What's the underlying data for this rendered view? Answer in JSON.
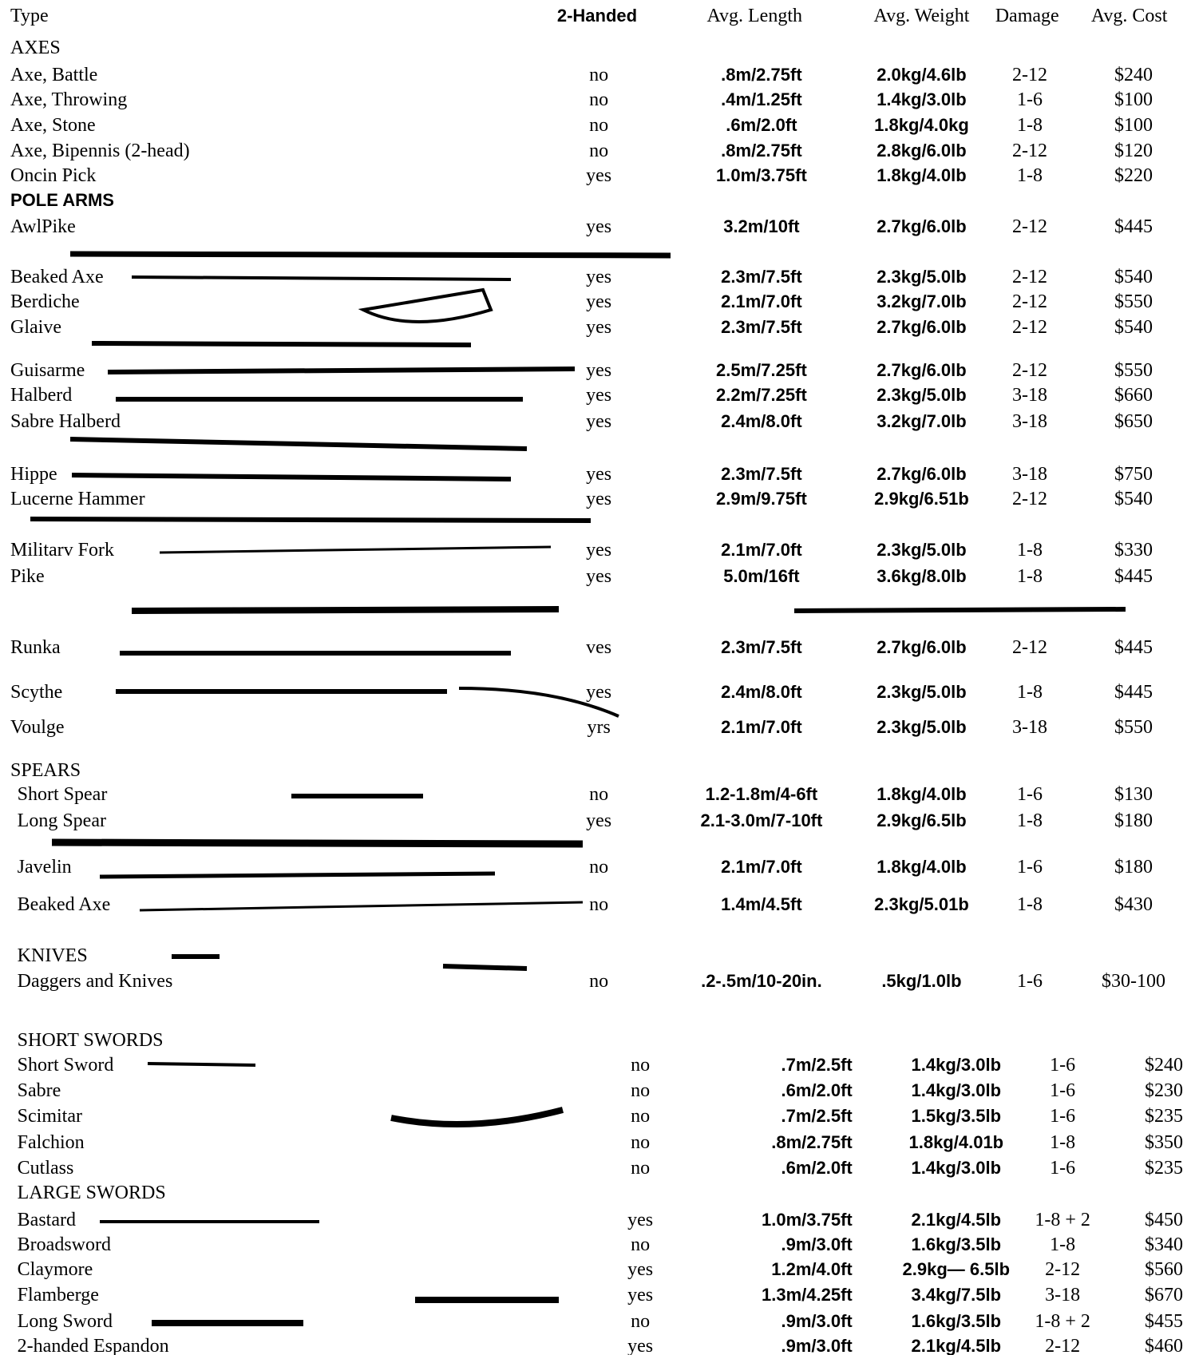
{
  "header": {
    "columns": [
      "Type",
      "2-Handed",
      "Avg. Length",
      "Avg. Weight",
      "Damage",
      "Avg. Cost"
    ]
  },
  "sections": [
    {
      "title": "AXES",
      "rows": [
        [
          "Axe, Battle",
          "no",
          ".8m/2.75ft",
          "2.0kg/4.6lb",
          "2-12",
          "$240"
        ],
        [
          "Axe, Throwing",
          "no",
          ".4m/1.25ft",
          "1.4kg/3.0lb",
          "1-6",
          "$100"
        ],
        [
          "Axe, Stone",
          "no",
          ".6m/2.0ft",
          "1.8kg/4.0kg",
          "1-8",
          "$100"
        ],
        [
          "Axe, Bipennis (2-head)",
          "no",
          ".8m/2.75ft",
          "2.8kg/6.0lb",
          "2-12",
          "$120"
        ],
        [
          "Oncin Pick",
          "yes",
          "1.0m/3.75ft",
          "1.8kg/4.0lb",
          "1-8",
          "$220"
        ]
      ]
    },
    {
      "title": "POLE ARMS",
      "rows": [
        [
          "AwlPike",
          "yes",
          "3.2m/10ft",
          "2.7kg/6.0lb",
          "2-12",
          "$445"
        ],
        [
          "Beaked Axe",
          "yes",
          "2.3m/7.5ft",
          "2.3kg/5.0lb",
          "2-12",
          "$540"
        ],
        [
          "Berdiche",
          "yes",
          "2.1m/7.0ft",
          "3.2kg/7.0lb",
          "2-12",
          "$550"
        ],
        [
          "Glaive",
          "yes",
          "2.3m/7.5ft",
          "2.7kg/6.0lb",
          "2-12",
          "$540"
        ],
        [
          "Guisarme",
          "yes",
          "2.5m/7.25ft",
          "2.7kg/6.0lb",
          "2-12",
          "$550"
        ],
        [
          "Halberd",
          "yes",
          "2.2m/7.25ft",
          "2.3kg/5.0lb",
          "3-18",
          "$660"
        ],
        [
          "Sabre Halberd",
          "yes",
          "2.4m/8.0ft",
          "3.2kg/7.0lb",
          "3-18",
          "$650"
        ],
        [
          "Hippe",
          "yes",
          "2.3m/7.5ft",
          "2.7kg/6.0lb",
          "3-18",
          "$750"
        ],
        [
          "Lucerne Hammer",
          "yes",
          "2.9m/9.75ft",
          "2.9kg/6.51b",
          "2-12",
          "$540"
        ],
        [
          "Militarv Fork",
          "yes",
          "2.1m/7.0ft",
          "2.3kg/5.0lb",
          "1-8",
          "$330"
        ],
        [
          "Pike",
          "yes",
          "5.0m/16ft",
          "3.6kg/8.0lb",
          "1-8",
          "$445"
        ],
        [
          "Runka",
          "ves",
          "2.3m/7.5ft",
          "2.7kg/6.0lb",
          "2-12",
          "$445"
        ],
        [
          "Scythe",
          "yes",
          "2.4m/8.0ft",
          "2.3kg/5.0lb",
          "1-8",
          "$445"
        ],
        [
          "Voulge",
          "yrs",
          "2.1m/7.0ft",
          "2.3kg/5.0lb",
          "3-18",
          "$550"
        ]
      ]
    },
    {
      "title": "SPEARS",
      "rows": [
        [
          "Short Spear",
          "no",
          "1.2-1.8m/4-6ft",
          "1.8kg/4.0lb",
          "1-6",
          "$130"
        ],
        [
          "Long Spear",
          "yes",
          "2.1-3.0m/7-10ft",
          "2.9kg/6.5lb",
          "1-8",
          "$180"
        ],
        [
          "Javelin",
          "no",
          "2.1m/7.0ft",
          "1.8kg/4.0lb",
          "1-6",
          "$180"
        ],
        [
          "Beaked Axe",
          "no",
          "1.4m/4.5ft",
          "2.3kg/5.01b",
          "1-8",
          "$430"
        ]
      ]
    },
    {
      "title": "KNIVES",
      "rows": [
        [
          "Daggers and Knives",
          "no",
          ".2-.5m/10-20in.",
          ".5kg/1.0lb",
          "1-6",
          "$30-100"
        ]
      ]
    },
    {
      "title": "SHORT SWORDS",
      "rows": [
        [
          "Short Sword",
          "no",
          ".7m/2.5ft",
          "1.4kg/3.0lb",
          "1-6",
          "$240"
        ],
        [
          "Sabre",
          "no",
          ".6m/2.0ft",
          "1.4kg/3.0lb",
          "1-6",
          "$230"
        ],
        [
          "Scimitar",
          "no",
          ".7m/2.5ft",
          "1.5kg/3.5lb",
          "1-6",
          "$235"
        ],
        [
          "Falchion",
          "no",
          ".8m/2.75ft",
          "1.8kg/4.01b",
          "1-8",
          "$350"
        ],
        [
          "Cutlass",
          "no",
          ".6m/2.0ft",
          "1.4kg/3.0lb",
          "1-6",
          "$235"
        ]
      ]
    },
    {
      "title": "LARGE SWORDS",
      "rows": [
        [
          "Bastard",
          "yes",
          "1.0m/3.75ft",
          "2.1kg/4.5lb",
          "1-8 + 2",
          "$450"
        ],
        [
          "Broadsword",
          "no",
          ".9m/3.0ft",
          "1.6kg/3.5lb",
          "1-8",
          "$340"
        ],
        [
          "Claymore",
          "yes",
          "1.2m/4.0ft",
          "2.9kg— 6.5lb",
          "2-12",
          "$560"
        ],
        [
          "Flamberge",
          "yes",
          "1.3m/4.25ft",
          "3.4kg/7.5lb",
          "3-18",
          "$670"
        ],
        [
          "Long Sword",
          "no",
          ".9m/3.0ft",
          "1.6kg/3.5lb",
          "1-8 + 2",
          "$455"
        ],
        [
          "2-handed Espandon",
          "yes",
          ".9m/3.0ft",
          "2.1kg/4.5lb",
          "2-12",
          "$460"
        ]
      ]
    }
  ]
}
